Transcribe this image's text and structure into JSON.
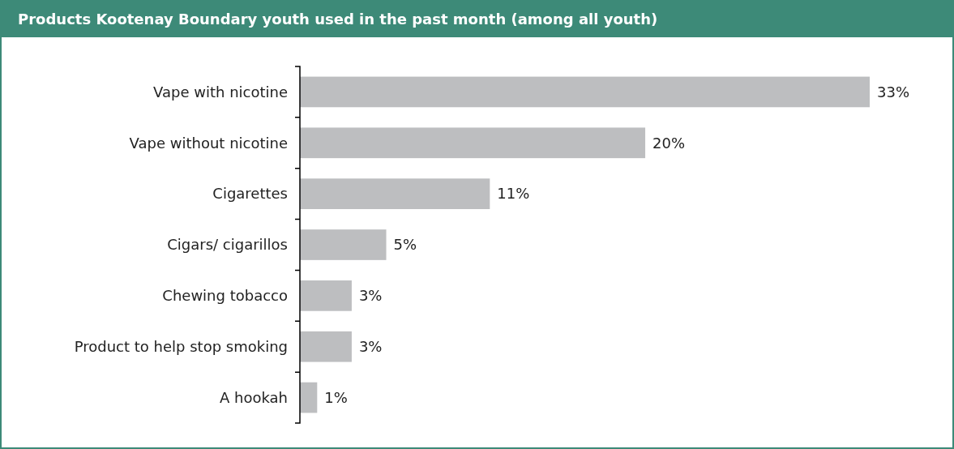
{
  "chart_data": {
    "type": "bar",
    "orientation": "horizontal",
    "title": "Products Kootenay Boundary youth used in the past month (among all youth)",
    "categories": [
      "Vape with nicotine",
      "Vape without nicotine",
      "Cigarettes",
      "Cigars/ cigarillos",
      "Chewing tobacco",
      "Product to help stop smoking",
      "A hookah"
    ],
    "values": [
      33,
      20,
      11,
      5,
      3,
      3,
      1
    ],
    "value_labels": [
      "33%",
      "20%",
      "11%",
      "5%",
      "3%",
      "3%",
      "1%"
    ],
    "color": "#bdbec0"
  }
}
